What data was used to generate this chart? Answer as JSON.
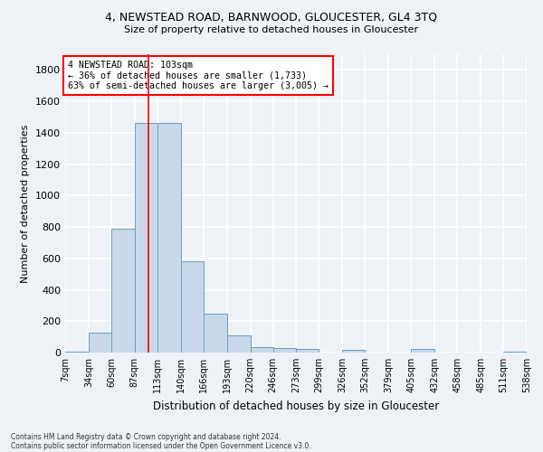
{
  "title1": "4, NEWSTEAD ROAD, BARNWOOD, GLOUCESTER, GL4 3TQ",
  "title2": "Size of property relative to detached houses in Gloucester",
  "xlabel": "Distribution of detached houses by size in Gloucester",
  "ylabel": "Number of detached properties",
  "footnote1": "Contains HM Land Registry data © Crown copyright and database right 2024.",
  "footnote2": "Contains public sector information licensed under the Open Government Licence v3.0.",
  "bar_color": "#c8d8e8",
  "bar_edge_color": "#6a9fc0",
  "vline_x": 103,
  "vline_color": "red",
  "annotation_line1": "4 NEWSTEAD ROAD: 103sqm",
  "annotation_line2": "← 36% of detached houses are smaller (1,733)",
  "annotation_line3": "63% of semi-detached houses are larger (3,005) →",
  "annotation_box_color": "white",
  "annotation_box_edge": "red",
  "bin_edges": [
    7,
    34,
    60,
    87,
    113,
    140,
    166,
    193,
    220,
    246,
    273,
    299,
    326,
    352,
    379,
    405,
    432,
    458,
    485,
    511,
    538
  ],
  "bar_heights": [
    5,
    125,
    790,
    1460,
    1460,
    580,
    245,
    110,
    35,
    30,
    25,
    0,
    15,
    0,
    0,
    25,
    0,
    0,
    0,
    5
  ],
  "ylim": [
    0,
    1900
  ],
  "yticks": [
    0,
    200,
    400,
    600,
    800,
    1000,
    1200,
    1400,
    1600,
    1800
  ],
  "bg_color": "#eef2f7",
  "grid_color": "white"
}
